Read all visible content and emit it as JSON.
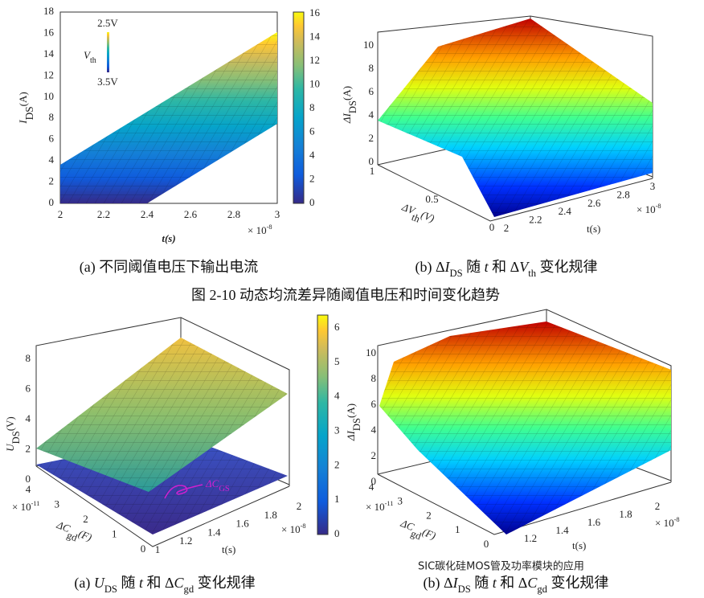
{
  "panel_a": {
    "y_label": [
      "I",
      "DS",
      "(A)"
    ],
    "x_label": "t(s)",
    "y_ticks": [
      0,
      2,
      4,
      6,
      8,
      10,
      12,
      14,
      16,
      18
    ],
    "x_ticks": [
      2,
      2.2,
      2.4,
      2.6,
      2.8,
      3
    ],
    "x_scale": [
      "× 10",
      "-8"
    ],
    "colorbar_ticks": [
      0,
      2,
      4,
      6,
      8,
      10,
      12,
      14,
      16
    ],
    "legend": [
      "2.5V",
      "V",
      "th",
      "3.5V"
    ]
  },
  "panel_b": {
    "z_label": [
      "ΔI",
      "DS",
      "(A)"
    ],
    "z_ticks": [
      0,
      2,
      4,
      6,
      8,
      10
    ],
    "v_label": [
      "ΔV",
      "th",
      "(V)"
    ],
    "v_ticks": [
      1,
      0.5,
      0
    ],
    "t_label": "t(s)",
    "t_ticks": [
      2,
      2.2,
      2.4,
      2.6,
      2.8,
      3
    ],
    "t_scale": [
      "× 10",
      "-8"
    ]
  },
  "caption_a": "(a)  不同阈值电压下输出电流",
  "caption_b": [
    "(b) Δ",
    "I",
    "DS",
    " 随 ",
    "t",
    " 和 Δ",
    "V",
    "th",
    " 变化规律"
  ],
  "figure_caption": "图 2-10  动态均流差异随阈值电压和时间变化趋势",
  "panel_c": {
    "z_label": [
      "U",
      "DS",
      "(V)"
    ],
    "z_ticks": [
      0,
      2,
      4,
      6,
      8
    ],
    "c_label": [
      "ΔC",
      "gd",
      "(F)"
    ],
    "c_ticks": [
      4,
      3,
      2,
      1,
      0
    ],
    "c_scale": [
      "× 10",
      "-11"
    ],
    "t_label": "t(s)",
    "t_ticks": [
      1,
      1.2,
      1.4,
      1.6,
      1.8,
      2
    ],
    "t_scale": [
      "× 10",
      "-8"
    ],
    "annotation": [
      "ΔC",
      "GS"
    ],
    "colorbar_ticks": [
      0,
      1,
      2,
      3,
      4,
      5,
      6
    ]
  },
  "panel_d": {
    "z_label": [
      "ΔI",
      "DS",
      "(A)"
    ],
    "z_ticks": [
      0,
      2,
      4,
      6,
      8,
      10
    ],
    "c_label": [
      "ΔC",
      "gd",
      "(F)"
    ],
    "c_ticks": [
      4,
      3,
      2,
      1,
      0
    ],
    "c_scale": [
      "× 10",
      "-11"
    ],
    "t_label": "t(s)",
    "t_ticks": [
      1.2,
      1.4,
      1.6,
      1.8,
      2
    ],
    "t_scale": [
      "× 10",
      "-8"
    ]
  },
  "caption_c": [
    "(a) ",
    "U",
    "DS",
    " 随 ",
    "t",
    " 和 Δ",
    "C",
    "gd",
    " 变化规律"
  ],
  "caption_d": [
    "(b) Δ",
    "I",
    "DS",
    " 随 ",
    "t",
    " 和 Δ",
    "C",
    "gd",
    " 变化规律"
  ],
  "watermark": "SIC碳化硅MOS管及功率模块的应用"
}
